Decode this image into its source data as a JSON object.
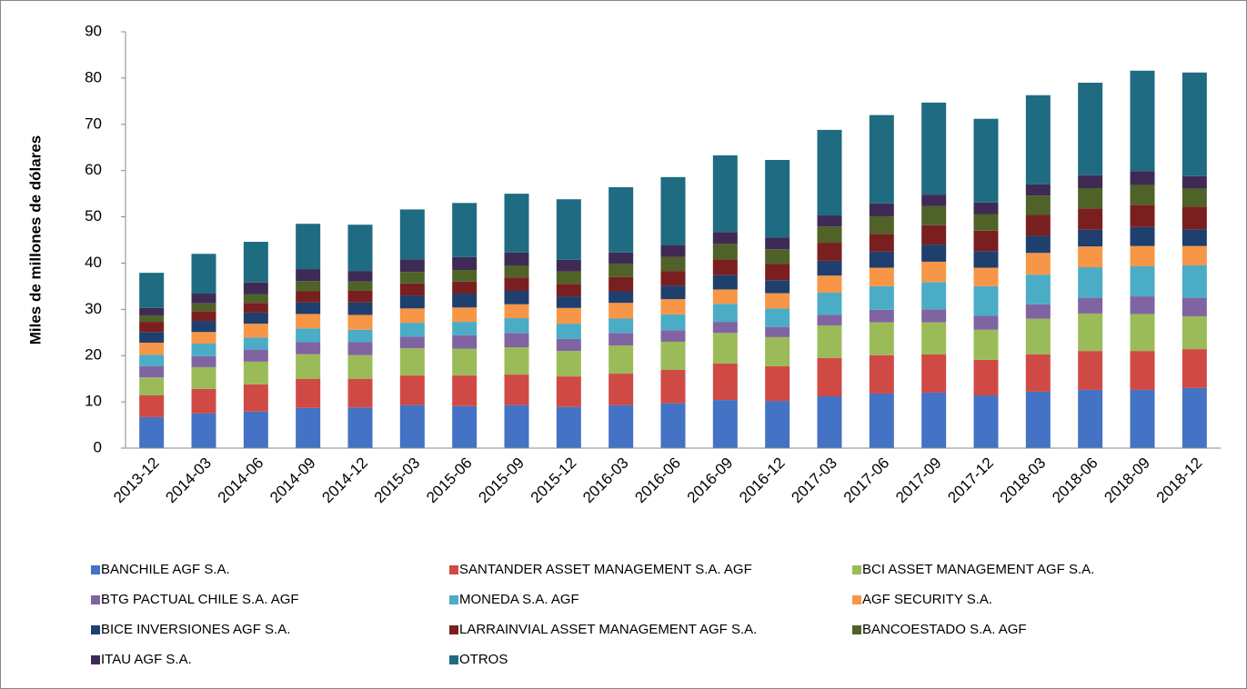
{
  "chart_data": {
    "type": "stacked_bar",
    "ylabel": "Miles de millones de dólares",
    "categories": [
      "2013-12",
      "2014-03",
      "2014-06",
      "2014-09",
      "2014-12",
      "2015-03",
      "2015-06",
      "2015-09",
      "2015-12",
      "2016-03",
      "2016-06",
      "2016-09",
      "2016-12",
      "2017-03",
      "2017-06",
      "2017-09",
      "2017-12",
      "2018-03",
      "2018-06",
      "2018-09",
      "2018-12"
    ],
    "ylim": [
      0,
      90
    ],
    "yticks": [
      0,
      10,
      20,
      30,
      40,
      50,
      60,
      70,
      80,
      90
    ],
    "grid": false,
    "legend": "bottom",
    "series": [
      {
        "name": "BANCHILE AGF S.A.",
        "color": "#4472c4",
        "values": [
          6.7,
          7.5,
          7.9,
          8.7,
          8.8,
          9.3,
          9.1,
          9.3,
          8.9,
          9.3,
          9.7,
          10.4,
          10.2,
          11.2,
          11.8,
          12.0,
          11.4,
          12.2,
          12.6,
          12.6,
          13.0
        ]
      },
      {
        "name": "SANTANDER ASSET MANAGEMENT S.A. AGF",
        "color": "#d04a45",
        "values": [
          4.7,
          5.3,
          5.9,
          6.3,
          6.2,
          6.4,
          6.6,
          6.6,
          6.6,
          6.8,
          7.2,
          7.9,
          7.5,
          8.3,
          8.3,
          8.3,
          7.7,
          8.1,
          8.4,
          8.4,
          8.4
        ]
      },
      {
        "name": "BCI ASSET MANAGEMENT AGF S.A.",
        "color": "#9bbb59",
        "values": [
          3.9,
          4.7,
          4.9,
          5.3,
          5.1,
          5.9,
          5.8,
          5.9,
          5.5,
          6.1,
          6.1,
          6.6,
          6.3,
          7.0,
          7.1,
          6.9,
          6.5,
          7.7,
          8.1,
          8.0,
          7.1
        ]
      },
      {
        "name": "BTG PACTUAL CHILE S.A. AGF",
        "color": "#8064a2",
        "values": [
          2.4,
          2.4,
          2.6,
          2.6,
          2.8,
          2.5,
          2.9,
          3.1,
          2.6,
          2.7,
          2.5,
          2.4,
          2.2,
          2.3,
          2.7,
          2.8,
          3.0,
          3.1,
          3.4,
          3.8,
          4.0
        ]
      },
      {
        "name": "MONEDA S.A. AGF",
        "color": "#4bacc6",
        "values": [
          2.5,
          2.7,
          2.6,
          3.0,
          2.7,
          3.0,
          2.9,
          3.2,
          3.3,
          3.1,
          3.4,
          3.9,
          4.0,
          4.8,
          5.1,
          5.9,
          6.4,
          6.4,
          6.6,
          6.5,
          7.0
        ]
      },
      {
        "name": "AGF SECURITY S.A.",
        "color": "#f79646",
        "values": [
          2.6,
          2.5,
          3.0,
          3.1,
          3.2,
          3.1,
          3.1,
          3.0,
          3.4,
          3.4,
          3.3,
          3.1,
          3.3,
          3.7,
          4.0,
          4.4,
          4.0,
          4.7,
          4.5,
          4.4,
          4.2
        ]
      },
      {
        "name": "BICE INVERSIONES AGF S.A.",
        "color": "#1f3f6e",
        "values": [
          2.3,
          2.4,
          2.4,
          2.5,
          2.7,
          2.8,
          3.0,
          2.9,
          2.5,
          2.5,
          2.9,
          3.1,
          2.8,
          3.2,
          3.5,
          3.7,
          3.6,
          3.7,
          3.6,
          4.1,
          3.6
        ]
      },
      {
        "name": "LARRAINVIAL ASSET MANAGEMENT AGF S.A.",
        "color": "#7a1f1f",
        "values": [
          2.2,
          2.1,
          2.1,
          2.4,
          2.5,
          2.6,
          2.6,
          2.9,
          2.7,
          3.1,
          3.2,
          3.4,
          3.5,
          3.9,
          3.8,
          4.2,
          4.4,
          4.5,
          4.6,
          4.8,
          4.9
        ]
      },
      {
        "name": "BANCOESTADO S.A. AGF",
        "color": "#4f6228",
        "values": [
          1.4,
          1.7,
          1.9,
          2.2,
          2.0,
          2.5,
          2.5,
          2.6,
          2.7,
          2.9,
          3.0,
          3.4,
          3.2,
          3.5,
          3.8,
          4.1,
          3.6,
          4.2,
          4.4,
          4.3,
          4.0
        ]
      },
      {
        "name": "ITAU AGF S.A.",
        "color": "#3f2a55",
        "values": [
          1.6,
          2.1,
          2.5,
          2.6,
          2.3,
          2.7,
          2.8,
          2.8,
          2.5,
          2.4,
          2.6,
          2.5,
          2.5,
          2.4,
          2.8,
          2.5,
          2.5,
          2.4,
          2.8,
          3.0,
          2.6
        ]
      },
      {
        "name": "OTROS",
        "color": "#1f6b82",
        "values": [
          7.6,
          8.6,
          8.8,
          9.8,
          10.0,
          10.8,
          11.7,
          12.7,
          13.1,
          14.1,
          14.7,
          16.6,
          16.8,
          18.5,
          19.1,
          19.9,
          18.1,
          19.3,
          20.0,
          21.7,
          22.4
        ]
      }
    ]
  }
}
